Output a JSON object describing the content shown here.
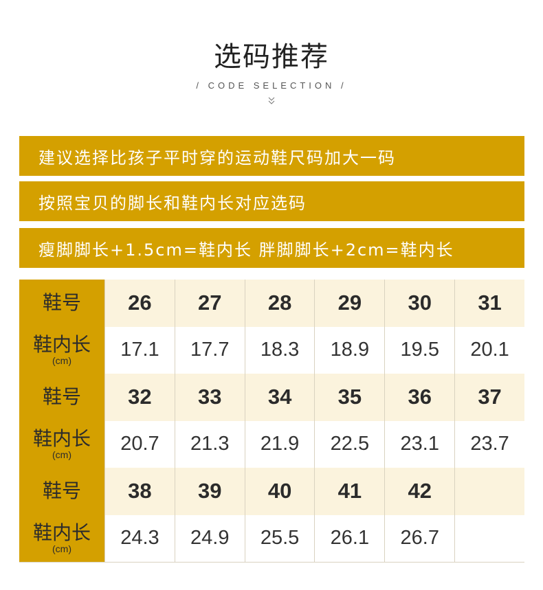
{
  "header": {
    "title": "选码推荐",
    "subtitle": "/  CODE SELECTION  /"
  },
  "banners": [
    "建议选择比孩子平时穿的运动鞋尺码加大一码",
    "按照宝贝的脚长和鞋内长对应选码",
    "瘦脚脚长+1.5cm=鞋内长  胖脚脚长+2cm=鞋内长"
  ],
  "table": {
    "size_label": "鞋号",
    "length_label": "鞋内长",
    "length_unit": "(cm)",
    "blocks": [
      {
        "sizes": [
          "26",
          "27",
          "28",
          "29",
          "30",
          "31"
        ],
        "lengths": [
          "17.1",
          "17.7",
          "18.3",
          "18.9",
          "19.5",
          "20.1"
        ]
      },
      {
        "sizes": [
          "32",
          "33",
          "34",
          "35",
          "36",
          "37"
        ],
        "lengths": [
          "20.7",
          "21.3",
          "21.9",
          "22.5",
          "23.1",
          "23.7"
        ]
      },
      {
        "sizes": [
          "38",
          "39",
          "40",
          "41",
          "42",
          ""
        ],
        "lengths": [
          "24.3",
          "24.9",
          "25.5",
          "26.1",
          "26.7",
          ""
        ]
      }
    ]
  },
  "colors": {
    "accent": "#d4a000",
    "size_row_bg": "#fbf3dd"
  }
}
